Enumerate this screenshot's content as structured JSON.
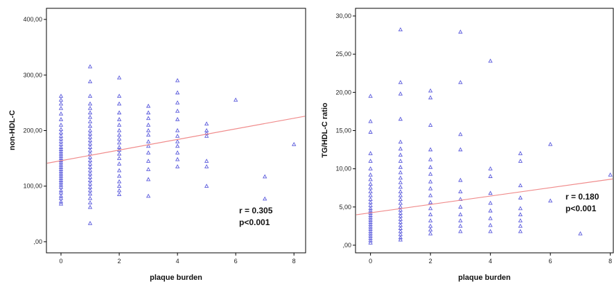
{
  "chart_data": [
    {
      "type": "scatter",
      "xlabel": "plaque burden",
      "ylabel": "non-HDL-C",
      "xlim": [
        -0.5,
        8.4
      ],
      "ylim": [
        -20,
        420
      ],
      "x_ticks": [
        "0",
        "2",
        "4",
        "6",
        "8"
      ],
      "y_ticks": [
        ",00",
        "100,00",
        "200,00",
        "300,00",
        "400,00"
      ],
      "marker": "triangle",
      "marker_color": "#5a5adc",
      "fit_line": {
        "intercept": 146,
        "slope": 9.5,
        "color": "#f08a8a"
      },
      "annotations": [
        "r = 0.305",
        "p<0.001"
      ],
      "points": [
        [
          0,
          68
        ],
        [
          0,
          72
        ],
        [
          0,
          78
        ],
        [
          0,
          82
        ],
        [
          0,
          88
        ],
        [
          0,
          92
        ],
        [
          0,
          98
        ],
        [
          0,
          102
        ],
        [
          0,
          106
        ],
        [
          0,
          110
        ],
        [
          0,
          114
        ],
        [
          0,
          118
        ],
        [
          0,
          122
        ],
        [
          0,
          126
        ],
        [
          0,
          130
        ],
        [
          0,
          134
        ],
        [
          0,
          138
        ],
        [
          0,
          142
        ],
        [
          0,
          146
        ],
        [
          0,
          150
        ],
        [
          0,
          154
        ],
        [
          0,
          158
        ],
        [
          0,
          162
        ],
        [
          0,
          166
        ],
        [
          0,
          170
        ],
        [
          0,
          175
        ],
        [
          0,
          180
        ],
        [
          0,
          185
        ],
        [
          0,
          190
        ],
        [
          0,
          196
        ],
        [
          0,
          202
        ],
        [
          0,
          210
        ],
        [
          0,
          220
        ],
        [
          0,
          230
        ],
        [
          0,
          240
        ],
        [
          0,
          248
        ],
        [
          0,
          255
        ],
        [
          0,
          262
        ],
        [
          1,
          33
        ],
        [
          1,
          62
        ],
        [
          1,
          70
        ],
        [
          1,
          78
        ],
        [
          1,
          86
        ],
        [
          1,
          92
        ],
        [
          1,
          98
        ],
        [
          1,
          104
        ],
        [
          1,
          110
        ],
        [
          1,
          116
        ],
        [
          1,
          122
        ],
        [
          1,
          128
        ],
        [
          1,
          134
        ],
        [
          1,
          140
        ],
        [
          1,
          146
        ],
        [
          1,
          152
        ],
        [
          1,
          158
        ],
        [
          1,
          164
        ],
        [
          1,
          170
        ],
        [
          1,
          176
        ],
        [
          1,
          182
        ],
        [
          1,
          188
        ],
        [
          1,
          194
        ],
        [
          1,
          200
        ],
        [
          1,
          208
        ],
        [
          1,
          216
        ],
        [
          1,
          224
        ],
        [
          1,
          232
        ],
        [
          1,
          240
        ],
        [
          1,
          248
        ],
        [
          1,
          262
        ],
        [
          1,
          288
        ],
        [
          1,
          315
        ],
        [
          2,
          85
        ],
        [
          2,
          92
        ],
        [
          2,
          100
        ],
        [
          2,
          108
        ],
        [
          2,
          118
        ],
        [
          2,
          128
        ],
        [
          2,
          140
        ],
        [
          2,
          150
        ],
        [
          2,
          158
        ],
        [
          2,
          165
        ],
        [
          2,
          170
        ],
        [
          2,
          178
        ],
        [
          2,
          185
        ],
        [
          2,
          192
        ],
        [
          2,
          200
        ],
        [
          2,
          210
        ],
        [
          2,
          220
        ],
        [
          2,
          232
        ],
        [
          2,
          248
        ],
        [
          2,
          262
        ],
        [
          2,
          295
        ],
        [
          3,
          82
        ],
        [
          3,
          112
        ],
        [
          3,
          130
        ],
        [
          3,
          145
        ],
        [
          3,
          160
        ],
        [
          3,
          172
        ],
        [
          3,
          180
        ],
        [
          3,
          192
        ],
        [
          3,
          200
        ],
        [
          3,
          210
        ],
        [
          3,
          222
        ],
        [
          3,
          232
        ],
        [
          3,
          244
        ],
        [
          4,
          135
        ],
        [
          4,
          148
        ],
        [
          4,
          160
        ],
        [
          4,
          172
        ],
        [
          4,
          180
        ],
        [
          4,
          190
        ],
        [
          4,
          200
        ],
        [
          4,
          220
        ],
        [
          4,
          235
        ],
        [
          4,
          250
        ],
        [
          4,
          268
        ],
        [
          4,
          290
        ],
        [
          5,
          100
        ],
        [
          5,
          135
        ],
        [
          5,
          145
        ],
        [
          5,
          190
        ],
        [
          5,
          195
        ],
        [
          5,
          200
        ],
        [
          5,
          212
        ],
        [
          6,
          255
        ],
        [
          7,
          77
        ],
        [
          7,
          117
        ],
        [
          8,
          175
        ]
      ]
    },
    {
      "type": "scatter",
      "xlabel": "plaque burden",
      "ylabel": "TG/HDL-C ratio",
      "xlim": [
        -0.5,
        8.1
      ],
      "ylim": [
        -1,
        31
      ],
      "x_ticks": [
        "0",
        "2",
        "4",
        "6",
        "8"
      ],
      "y_ticks": [
        ",00",
        "5,00",
        "10,00",
        "15,00",
        "20,00",
        "25,00",
        "30,00"
      ],
      "marker": "triangle",
      "marker_color": "#5a5adc",
      "fit_line": {
        "intercept": 4.25,
        "slope": 0.545,
        "color": "#f08a8a"
      },
      "annotations": [
        "r = 0.180",
        "p<0.001"
      ],
      "points": [
        [
          0,
          0.3
        ],
        [
          0,
          0.6
        ],
        [
          0,
          0.9
        ],
        [
          0,
          1.2
        ],
        [
          0,
          1.5
        ],
        [
          0,
          1.8
        ],
        [
          0,
          2.1
        ],
        [
          0,
          2.4
        ],
        [
          0,
          2.7
        ],
        [
          0,
          3.0
        ],
        [
          0,
          3.3
        ],
        [
          0,
          3.6
        ],
        [
          0,
          3.9
        ],
        [
          0,
          4.2
        ],
        [
          0,
          4.5
        ],
        [
          0,
          4.8
        ],
        [
          0,
          5.2
        ],
        [
          0,
          5.6
        ],
        [
          0,
          6.0
        ],
        [
          0,
          6.5
        ],
        [
          0,
          7.0
        ],
        [
          0,
          7.5
        ],
        [
          0,
          8.0
        ],
        [
          0,
          8.6
        ],
        [
          0,
          9.2
        ],
        [
          0,
          10.0
        ],
        [
          0,
          11.0
        ],
        [
          0,
          12.0
        ],
        [
          0,
          14.8
        ],
        [
          0,
          16.2
        ],
        [
          0,
          19.5
        ],
        [
          1,
          0.7
        ],
        [
          1,
          1.0
        ],
        [
          1,
          1.4
        ],
        [
          1,
          1.8
        ],
        [
          1,
          2.2
        ],
        [
          1,
          2.6
        ],
        [
          1,
          3.0
        ],
        [
          1,
          3.4
        ],
        [
          1,
          3.8
        ],
        [
          1,
          4.2
        ],
        [
          1,
          4.6
        ],
        [
          1,
          5.0
        ],
        [
          1,
          5.5
        ],
        [
          1,
          6.0
        ],
        [
          1,
          6.5
        ],
        [
          1,
          7.0
        ],
        [
          1,
          7.6
        ],
        [
          1,
          8.2
        ],
        [
          1,
          8.8
        ],
        [
          1,
          9.5
        ],
        [
          1,
          10.2
        ],
        [
          1,
          11.0
        ],
        [
          1,
          11.8
        ],
        [
          1,
          12.6
        ],
        [
          1,
          13.5
        ],
        [
          1,
          16.5
        ],
        [
          1,
          19.8
        ],
        [
          1,
          21.3
        ],
        [
          1,
          28.2
        ],
        [
          2,
          1.5
        ],
        [
          2,
          2.0
        ],
        [
          2,
          2.5
        ],
        [
          2,
          3.2
        ],
        [
          2,
          4.0
        ],
        [
          2,
          4.8
        ],
        [
          2,
          5.6
        ],
        [
          2,
          6.5
        ],
        [
          2,
          7.4
        ],
        [
          2,
          8.3
        ],
        [
          2,
          9.3
        ],
        [
          2,
          10.2
        ],
        [
          2,
          11.2
        ],
        [
          2,
          12.5
        ],
        [
          2,
          15.7
        ],
        [
          2,
          19.3
        ],
        [
          2,
          20.2
        ],
        [
          3,
          1.8
        ],
        [
          3,
          2.5
        ],
        [
          3,
          3.2
        ],
        [
          3,
          4.0
        ],
        [
          3,
          5.0
        ],
        [
          3,
          6.0
        ],
        [
          3,
          7.0
        ],
        [
          3,
          8.5
        ],
        [
          3,
          12.5
        ],
        [
          3,
          14.5
        ],
        [
          3,
          21.3
        ],
        [
          3,
          27.9
        ],
        [
          4,
          1.8
        ],
        [
          4,
          2.6
        ],
        [
          4,
          3.5
        ],
        [
          4,
          4.5
        ],
        [
          4,
          5.5
        ],
        [
          4,
          6.8
        ],
        [
          4,
          9.0
        ],
        [
          4,
          10.0
        ],
        [
          4,
          24.1
        ],
        [
          5,
          1.8
        ],
        [
          5,
          2.5
        ],
        [
          5,
          3.2
        ],
        [
          5,
          4.0
        ],
        [
          5,
          4.8
        ],
        [
          5,
          6.2
        ],
        [
          5,
          7.8
        ],
        [
          5,
          11.0
        ],
        [
          5,
          12.0
        ],
        [
          6,
          5.8
        ],
        [
          6,
          13.2
        ],
        [
          7,
          1.5
        ],
        [
          8,
          9.2
        ]
      ]
    }
  ]
}
